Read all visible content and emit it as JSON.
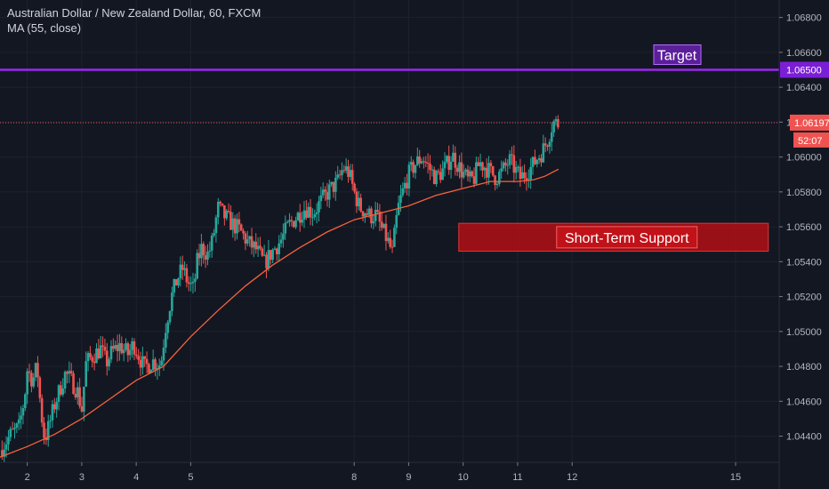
{
  "header": {
    "symbol_line": "Australian Dollar / New Zealand Dollar, 60, FXCM",
    "indicator_line": "MA (55, close)"
  },
  "colors": {
    "background": "#131722",
    "grid": "#1e2230",
    "up": "#26a69a",
    "down": "#ef5350",
    "ma": "#f7623c",
    "target": "#9c27f0",
    "support_fill": "#b20f14",
    "support_border": "#e0353a",
    "price_line": "#ef5350"
  },
  "chart_data": {
    "type": "candlestick",
    "title": "Australian Dollar / New Zealand Dollar, 60, FXCM",
    "ylim": [
      1.0425,
      1.069
    ],
    "xlim": [
      1.5,
      15.8
    ],
    "x_ticks": [
      {
        "value": 2,
        "label": "2"
      },
      {
        "value": 3,
        "label": "3"
      },
      {
        "value": 4,
        "label": "4"
      },
      {
        "value": 5,
        "label": "5"
      },
      {
        "value": 8,
        "label": "8"
      },
      {
        "value": 9,
        "label": "9"
      },
      {
        "value": 10,
        "label": "10"
      },
      {
        "value": 11,
        "label": "11"
      },
      {
        "value": 12,
        "label": "12"
      },
      {
        "value": 15,
        "label": "15"
      }
    ],
    "y_ticks": [
      "1.06800",
      "1.06600",
      "1.06400",
      "1.06200",
      "1.06000",
      "1.05800",
      "1.05600",
      "1.05400",
      "1.05200",
      "1.05000",
      "1.04800",
      "1.04600",
      "1.04400"
    ],
    "y_tick_values": [
      1.068,
      1.066,
      1.064,
      1.062,
      1.06,
      1.058,
      1.056,
      1.054,
      1.052,
      1.05,
      1.048,
      1.046,
      1.044
    ],
    "path": [
      [
        1.5,
        1.0432
      ],
      [
        1.7,
        1.0441
      ],
      [
        1.85,
        1.0445
      ],
      [
        1.95,
        1.0462
      ],
      [
        2.0,
        1.0478
      ],
      [
        2.1,
        1.0472
      ],
      [
        2.18,
        1.048
      ],
      [
        2.25,
        1.0455
      ],
      [
        2.32,
        1.0438
      ],
      [
        2.4,
        1.0446
      ],
      [
        2.5,
        1.0458
      ],
      [
        2.6,
        1.0467
      ],
      [
        2.7,
        1.0476
      ],
      [
        2.8,
        1.0472
      ],
      [
        2.92,
        1.0466
      ],
      [
        3.0,
        1.0455
      ],
      [
        3.08,
        1.0482
      ],
      [
        3.2,
        1.0486
      ],
      [
        3.35,
        1.049
      ],
      [
        3.45,
        1.0482
      ],
      [
        3.55,
        1.0488
      ],
      [
        3.7,
        1.0492
      ],
      [
        3.85,
        1.0487
      ],
      [
        3.95,
        1.0493
      ],
      [
        4.05,
        1.0486
      ],
      [
        4.15,
        1.0479
      ],
      [
        4.3,
        1.0483
      ],
      [
        4.45,
        1.0481
      ],
      [
        4.55,
        1.0505
      ],
      [
        4.65,
        1.052
      ],
      [
        4.75,
        1.053
      ],
      [
        4.85,
        1.0536
      ],
      [
        4.95,
        1.0528
      ],
      [
        5.05,
        1.0524
      ],
      [
        5.12,
        1.054
      ],
      [
        5.2,
        1.0548
      ],
      [
        5.32,
        1.0544
      ],
      [
        5.4,
        1.0552
      ],
      [
        5.5,
        1.0571
      ],
      [
        5.62,
        1.0566
      ],
      [
        5.75,
        1.0562
      ],
      [
        5.9,
        1.0558
      ],
      [
        6.05,
        1.0551
      ],
      [
        6.2,
        1.0547
      ],
      [
        6.35,
        1.0539
      ],
      [
        6.5,
        1.0546
      ],
      [
        6.65,
        1.0552
      ],
      [
        6.8,
        1.0561
      ],
      [
        6.95,
        1.0566
      ],
      [
        7.1,
        1.0571
      ],
      [
        7.25,
        1.0568
      ],
      [
        7.4,
        1.0575
      ],
      [
        7.55,
        1.0581
      ],
      [
        7.7,
        1.0586
      ],
      [
        7.8,
        1.0594
      ],
      [
        7.9,
        1.0591
      ],
      [
        8.0,
        1.058
      ],
      [
        8.1,
        1.0571
      ],
      [
        8.2,
        1.0569
      ],
      [
        8.3,
        1.0566
      ],
      [
        8.4,
        1.0567
      ],
      [
        8.5,
        1.0559
      ],
      [
        8.6,
        1.0553
      ],
      [
        8.7,
        1.0545
      ],
      [
        8.8,
        1.057
      ],
      [
        8.9,
        1.0581
      ],
      [
        9.0,
        1.059
      ],
      [
        9.12,
        1.0596
      ],
      [
        9.25,
        1.06
      ],
      [
        9.35,
        1.0595
      ],
      [
        9.5,
        1.0588
      ],
      [
        9.65,
        1.0593
      ],
      [
        9.8,
        1.0601
      ],
      [
        9.95,
        1.0593
      ],
      [
        10.1,
        1.0586
      ],
      [
        10.2,
        1.0588
      ],
      [
        10.3,
        1.0597
      ],
      [
        10.45,
        1.0593
      ],
      [
        10.6,
        1.0588
      ],
      [
        10.7,
        1.0591
      ],
      [
        10.85,
        1.0598
      ],
      [
        10.95,
        1.0593
      ],
      [
        11.05,
        1.0588
      ],
      [
        11.15,
        1.0591
      ],
      [
        11.25,
        1.0594
      ],
      [
        11.35,
        1.0599
      ],
      [
        11.45,
        1.0603
      ],
      [
        11.55,
        1.061
      ],
      [
        11.65,
        1.062
      ],
      [
        11.75,
        1.0619
      ]
    ],
    "ma_path": [
      [
        1.5,
        1.0428
      ],
      [
        2.0,
        1.0434
      ],
      [
        2.5,
        1.0441
      ],
      [
        3.0,
        1.045
      ],
      [
        3.5,
        1.0461
      ],
      [
        4.0,
        1.0472
      ],
      [
        4.5,
        1.048
      ],
      [
        5.0,
        1.0497
      ],
      [
        5.5,
        1.0512
      ],
      [
        6.0,
        1.0526
      ],
      [
        6.5,
        1.0538
      ],
      [
        7.0,
        1.0548
      ],
      [
        7.5,
        1.0557
      ],
      [
        8.0,
        1.0564
      ],
      [
        8.5,
        1.0568
      ],
      [
        9.0,
        1.0572
      ],
      [
        9.5,
        1.0578
      ],
      [
        10.0,
        1.0582
      ],
      [
        10.5,
        1.0586
      ],
      [
        11.0,
        1.0586
      ],
      [
        11.3,
        1.0587
      ],
      [
        11.5,
        1.0589
      ],
      [
        11.75,
        1.0593
      ]
    ],
    "annotations": {
      "target": {
        "label": "Target",
        "value": 1.065,
        "axis_label": "1.06500"
      },
      "support": {
        "label": "Short-Term Support",
        "top": 1.0562,
        "bottom": 1.0546,
        "x_start": 9.92,
        "x_end": 15.6
      },
      "last_price": {
        "value": 1.06197,
        "axis_label": "1.06197",
        "countdown": "52:07"
      }
    }
  }
}
